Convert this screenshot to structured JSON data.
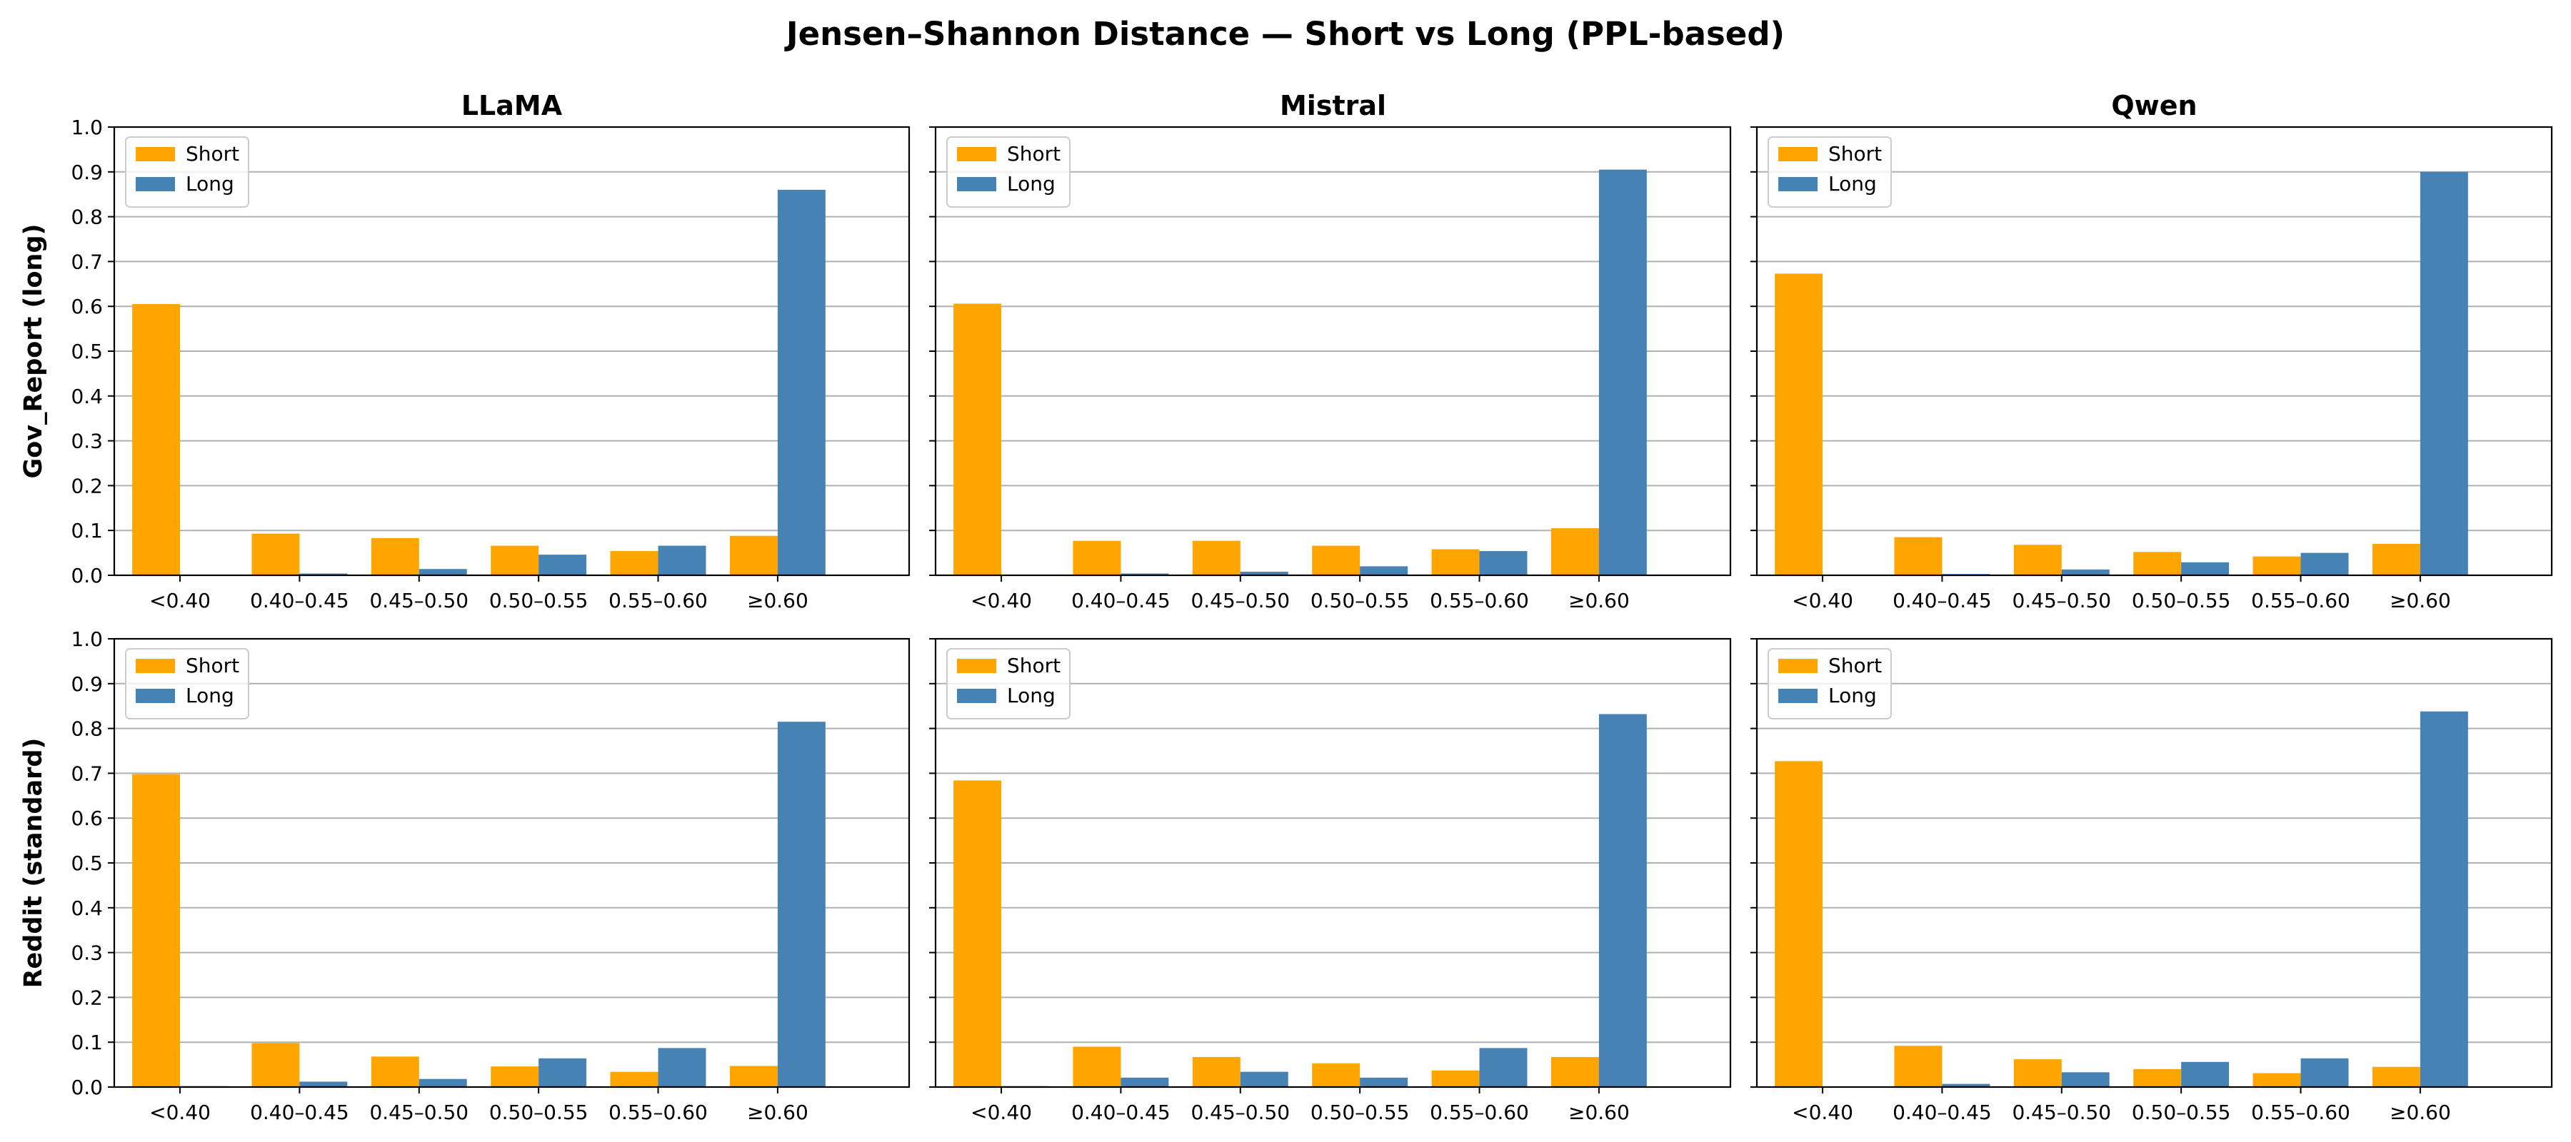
{
  "figure": {
    "title": "Jensen–Shannon Distance — Short vs Long (PPL-based)"
  },
  "colors": {
    "short": "#FFA500",
    "long": "#4682B4",
    "grid": "#b0b0b0",
    "axis": "#000000"
  },
  "chart_data": [
    {
      "type": "bar",
      "model": "LLaMA",
      "dataset": "Gov_Report (long)",
      "title": "LLaMA",
      "ylabel": "Gov_Report (long)",
      "categories": [
        "<0.40",
        "0.40–0.45",
        "0.45–0.50",
        "0.50–0.55",
        "0.55–0.60",
        "≥0.60"
      ],
      "series": [
        {
          "name": "Short",
          "values": [
            0.605,
            0.093,
            0.083,
            0.066,
            0.054,
            0.088
          ]
        },
        {
          "name": "Long",
          "values": [
            0.0,
            0.004,
            0.014,
            0.046,
            0.066,
            0.86
          ]
        }
      ],
      "ylim": [
        0,
        1.0
      ],
      "yticks": [
        "0.0",
        "0.1",
        "0.2",
        "0.3",
        "0.4",
        "0.5",
        "0.6",
        "0.7",
        "0.8",
        "0.9",
        "1.0"
      ],
      "grid": "y",
      "legend": "upper-left"
    },
    {
      "type": "bar",
      "model": "Mistral",
      "dataset": "Gov_Report (long)",
      "title": "Mistral",
      "ylabel": "",
      "categories": [
        "<0.40",
        "0.40–0.45",
        "0.45–0.50",
        "0.50–0.55",
        "0.55–0.60",
        "≥0.60"
      ],
      "series": [
        {
          "name": "Short",
          "values": [
            0.606,
            0.077,
            0.077,
            0.066,
            0.058,
            0.105
          ]
        },
        {
          "name": "Long",
          "values": [
            0.0,
            0.004,
            0.008,
            0.02,
            0.054,
            0.905
          ]
        }
      ],
      "ylim": [
        0,
        1.0
      ],
      "yticks": [],
      "grid": "y",
      "legend": "upper-left"
    },
    {
      "type": "bar",
      "model": "Qwen",
      "dataset": "Gov_Report (long)",
      "title": "Qwen",
      "ylabel": "",
      "categories": [
        "<0.40",
        "0.40–0.45",
        "0.45–0.50",
        "0.50–0.55",
        "0.55–0.60",
        "≥0.60"
      ],
      "series": [
        {
          "name": "Short",
          "values": [
            0.673,
            0.085,
            0.068,
            0.052,
            0.042,
            0.07
          ]
        },
        {
          "name": "Long",
          "values": [
            0.0,
            0.003,
            0.013,
            0.029,
            0.05,
            0.9
          ]
        }
      ],
      "ylim": [
        0,
        1.0
      ],
      "yticks": [],
      "grid": "y",
      "legend": "upper-left"
    },
    {
      "type": "bar",
      "model": "LLaMA",
      "dataset": "Reddit (standard)",
      "title": "",
      "ylabel": "Reddit (standard)",
      "categories": [
        "<0.40",
        "0.40–0.45",
        "0.45–0.50",
        "0.50–0.55",
        "0.55–0.60",
        "≥0.60"
      ],
      "series": [
        {
          "name": "Short",
          "values": [
            0.698,
            0.098,
            0.068,
            0.046,
            0.034,
            0.047
          ]
        },
        {
          "name": "Long",
          "values": [
            0.002,
            0.012,
            0.018,
            0.064,
            0.087,
            0.815
          ]
        }
      ],
      "ylim": [
        0,
        1.0
      ],
      "yticks": [
        "0.0",
        "0.1",
        "0.2",
        "0.3",
        "0.4",
        "0.5",
        "0.6",
        "0.7",
        "0.8",
        "0.9",
        "1.0"
      ],
      "grid": "y",
      "legend": "upper-left"
    },
    {
      "type": "bar",
      "model": "Mistral",
      "dataset": "Reddit (standard)",
      "title": "",
      "ylabel": "",
      "categories": [
        "<0.40",
        "0.40–0.45",
        "0.45–0.50",
        "0.50–0.55",
        "0.55–0.60",
        "≥0.60"
      ],
      "series": [
        {
          "name": "Short",
          "values": [
            0.684,
            0.09,
            0.067,
            0.053,
            0.037,
            0.067
          ]
        },
        {
          "name": "Long",
          "values": [
            0.002,
            0.021,
            0.034,
            0.021,
            0.087,
            0.832
          ]
        }
      ],
      "ylim": [
        0,
        1.0
      ],
      "yticks": [],
      "grid": "y",
      "legend": "upper-left"
    },
    {
      "type": "bar",
      "model": "Qwen",
      "dataset": "Reddit (standard)",
      "title": "",
      "ylabel": "",
      "categories": [
        "<0.40",
        "0.40–0.45",
        "0.45–0.50",
        "0.50–0.55",
        "0.55–0.60",
        "≥0.60"
      ],
      "series": [
        {
          "name": "Short",
          "values": [
            0.727,
            0.092,
            0.062,
            0.04,
            0.031,
            0.045
          ]
        },
        {
          "name": "Long",
          "values": [
            0.0,
            0.007,
            0.033,
            0.056,
            0.064,
            0.838
          ]
        }
      ],
      "ylim": [
        0,
        1.0
      ],
      "yticks": [],
      "grid": "y",
      "legend": "upper-left"
    }
  ]
}
